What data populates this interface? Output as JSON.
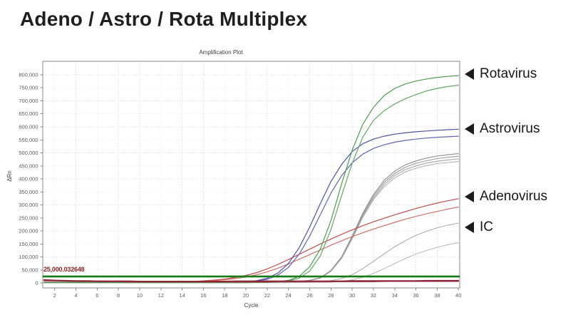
{
  "page": {
    "title": "Adeno / Astro / Rota Multiplex"
  },
  "annotations": [
    {
      "label": "Rotavirus",
      "y_value": 800000
    },
    {
      "label": "Astrovirus",
      "y_value": 590000
    },
    {
      "label": "Adenovirus",
      "y_value": 330000
    },
    {
      "label": "IC",
      "y_value": 210000
    }
  ],
  "style": {
    "grid_color": "#d7d7d7",
    "border_color": "#8a8a8a",
    "tick_color": "#8a8a8a",
    "tick_label_color": "#5a5a5a",
    "annotation_color": "#161616",
    "threshold_label_color": "#8e1f1f",
    "title_color": "#1f1f1f"
  },
  "chart_data": {
    "type": "line",
    "title": "Amplification Plot",
    "xlabel": "Cycle",
    "ylabel": "ΔRn",
    "xlim": [
      0.88,
      40.12
    ],
    "ylim": [
      -19000,
      852000
    ],
    "grid": true,
    "legend": "none",
    "x_ticks": [
      2,
      4,
      6,
      8,
      10,
      12,
      14,
      16,
      18,
      20,
      22,
      24,
      26,
      28,
      30,
      32,
      34,
      36,
      38,
      40
    ],
    "y_ticks": [
      0,
      50000,
      100000,
      150000,
      200000,
      250000,
      300000,
      350000,
      400000,
      450000,
      500000,
      550000,
      600000,
      650000,
      700000,
      750000,
      800000
    ],
    "threshold": {
      "value": 25000,
      "label": "25,000.032648",
      "color": "#157a15",
      "width": 2.6
    },
    "x": [
      1,
      2,
      3,
      4,
      5,
      6,
      7,
      8,
      9,
      10,
      11,
      12,
      13,
      14,
      15,
      16,
      17,
      18,
      19,
      20,
      21,
      22,
      23,
      24,
      25,
      26,
      27,
      28,
      29,
      30,
      31,
      32,
      33,
      34,
      35,
      36,
      37,
      38,
      39,
      40
    ],
    "series": [
      {
        "name": "ic-4",
        "group": "IC",
        "color": "#b1b1b1",
        "width": 1.1,
        "values": [
          1000,
          1000,
          1000,
          1000,
          1000,
          1000,
          1000,
          1000,
          1000,
          1000,
          1000,
          1000,
          1000,
          1000,
          1000,
          1000,
          1000,
          1000,
          1000,
          1000,
          2000,
          2000,
          3000,
          4000,
          6000,
          9000,
          19000,
          45000,
          94000,
          169000,
          252000,
          320000,
          370000,
          404000,
          427000,
          441000,
          451000,
          459000,
          463000,
          467000
        ]
      },
      {
        "name": "ic-3",
        "group": "IC",
        "color": "#a5a5a5",
        "width": 1.1,
        "values": [
          1000,
          1000,
          1000,
          1000,
          1000,
          1000,
          1000,
          1000,
          1000,
          1000,
          1000,
          1000,
          1000,
          1000,
          1000,
          1000,
          1000,
          1000,
          1000,
          1000,
          2000,
          2000,
          3000,
          4000,
          6000,
          10000,
          19000,
          46000,
          96000,
          173000,
          257000,
          326000,
          378000,
          413000,
          436000,
          450000,
          461000,
          468000,
          473000,
          477000
        ]
      },
      {
        "name": "ic-2",
        "group": "IC",
        "color": "#9a9a9a",
        "width": 1.1,
        "values": [
          1000,
          1000,
          1000,
          1000,
          1000,
          1000,
          1000,
          1000,
          1000,
          1000,
          1000,
          1000,
          1000,
          1000,
          1000,
          1000,
          1000,
          1000,
          1000,
          1000,
          2000,
          2000,
          3000,
          4000,
          6000,
          10000,
          20000,
          47000,
          98000,
          176000,
          263000,
          333000,
          386000,
          421000,
          445000,
          460000,
          470000,
          478000,
          483000,
          487000
        ]
      },
      {
        "name": "ic-1",
        "group": "IC",
        "color": "#8f8f8f",
        "width": 1.1,
        "values": [
          1000,
          1000,
          1000,
          1000,
          1000,
          1000,
          1000,
          1000,
          1000,
          1000,
          1000,
          1000,
          1000,
          1000,
          1000,
          1000,
          1000,
          1000,
          1000,
          1000,
          2000,
          2000,
          3000,
          4000,
          6000,
          10000,
          20000,
          48000,
          100000,
          180000,
          268000,
          340000,
          394000,
          430000,
          454000,
          469000,
          480000,
          488000,
          493000,
          497000
        ]
      },
      {
        "name": "ic-low-1",
        "group": "IC",
        "color": "#9f9f9f",
        "width": 0.9,
        "values": [
          1000,
          1000,
          1000,
          1000,
          1000,
          1000,
          1000,
          1000,
          1000,
          1000,
          1000,
          1000,
          1000,
          1000,
          1000,
          1000,
          1000,
          1000,
          1000,
          1000,
          1000,
          1000,
          1000,
          1000,
          2000,
          3000,
          5000,
          9000,
          17000,
          32000,
          55000,
          83000,
          112000,
          139000,
          163000,
          183000,
          199000,
          212000,
          222000,
          230000
        ]
      },
      {
        "name": "ic-low-2",
        "group": "IC",
        "color": "#b0b0b0",
        "width": 0.9,
        "values": [
          1000,
          1000,
          1000,
          1000,
          1000,
          1000,
          1000,
          1000,
          1000,
          1000,
          1000,
          1000,
          1000,
          1000,
          1000,
          1000,
          1000,
          1000,
          1000,
          1000,
          1000,
          1000,
          1000,
          1000,
          1000,
          2000,
          2000,
          3000,
          6000,
          12000,
          22000,
          37000,
          55000,
          75000,
          94000,
          111000,
          125000,
          137000,
          147000,
          155000
        ]
      },
      {
        "name": "adenovirus-2",
        "group": "Adenovirus",
        "color": "#d0716d",
        "width": 1.2,
        "values": [
          3000,
          3000,
          3000,
          3000,
          3000,
          3000,
          3000,
          3000,
          3000,
          3000,
          3000,
          3000,
          4000,
          4000,
          5000,
          7000,
          9000,
          12000,
          17000,
          23000,
          32000,
          43000,
          57000,
          73000,
          91000,
          109000,
          127000,
          145000,
          162000,
          178000,
          193000,
          207000,
          220000,
          233000,
          245000,
          256000,
          266000,
          275000,
          284000,
          292000
        ]
      },
      {
        "name": "adenovirus-1",
        "group": "Adenovirus",
        "color": "#c0504d",
        "width": 1.2,
        "values": [
          3000,
          3000,
          3000,
          3000,
          3000,
          3000,
          3000,
          3000,
          3000,
          3000,
          3000,
          4000,
          4000,
          5000,
          6000,
          8000,
          11000,
          15000,
          21000,
          29000,
          40000,
          54000,
          71000,
          90000,
          110000,
          130000,
          150000,
          169000,
          187000,
          204000,
          220000,
          235000,
          249000,
          262000,
          274000,
          286000,
          297000,
          307000,
          316000,
          324000
        ]
      },
      {
        "name": "astrovirus-2",
        "group": "Astrovirus",
        "color": "#5f64b4",
        "width": 1.2,
        "values": [
          2000,
          2000,
          2000,
          2000,
          2000,
          2000,
          2000,
          2000,
          2000,
          2000,
          2000,
          2000,
          2000,
          2000,
          2000,
          2000,
          2000,
          2000,
          2000,
          4000,
          7000,
          14000,
          30000,
          60000,
          110000,
          180000,
          262000,
          345000,
          412000,
          462000,
          495000,
          517000,
          531000,
          541000,
          548000,
          553000,
          557000,
          560000,
          562000,
          564000
        ]
      },
      {
        "name": "astrovirus-1",
        "group": "Astrovirus",
        "color": "#4c51a6",
        "width": 1.2,
        "values": [
          2000,
          2000,
          2000,
          2000,
          2000,
          2000,
          2000,
          2000,
          2000,
          2000,
          2000,
          2000,
          2000,
          2000,
          2000,
          2000,
          2000,
          2000,
          3000,
          5000,
          9000,
          18000,
          38000,
          75000,
          135000,
          215000,
          305000,
          390000,
          455000,
          505000,
          535000,
          553000,
          564000,
          572000,
          577000,
          581000,
          584000,
          587000,
          589000,
          591000
        ]
      },
      {
        "name": "rotavirus-2",
        "group": "Rotavirus",
        "color": "#61a963",
        "width": 1.2,
        "values": [
          2000,
          2000,
          2000,
          2000,
          2000,
          2000,
          2000,
          2000,
          2000,
          2000,
          2000,
          2000,
          2000,
          2000,
          2000,
          2000,
          2000,
          2000,
          2000,
          2000,
          2000,
          2000,
          4000,
          8000,
          18000,
          46000,
          104000,
          205000,
          335000,
          460000,
          560000,
          625000,
          662000,
          688000,
          708000,
          724000,
          738000,
          748000,
          755000,
          760000
        ]
      },
      {
        "name": "rotavirus-1",
        "group": "Rotavirus",
        "color": "#4e9b50",
        "width": 1.2,
        "values": [
          2000,
          2000,
          2000,
          2000,
          2000,
          2000,
          2000,
          2000,
          2000,
          2000,
          2000,
          2000,
          2000,
          2000,
          2000,
          2000,
          2000,
          2000,
          2000,
          2000,
          2000,
          3000,
          5000,
          10000,
          25000,
          62000,
          130000,
          240000,
          380000,
          510000,
          610000,
          675000,
          720000,
          748000,
          765000,
          776000,
          784000,
          790000,
          794000,
          797000
        ]
      },
      {
        "name": "baseline-negative-2",
        "group": "No amplification",
        "color": "#ab3330",
        "width": 1.3,
        "values": [
          9000,
          8000,
          7000,
          6000,
          6000,
          5000,
          5000,
          5000,
          4000,
          4000,
          4000,
          4000,
          4000,
          4000,
          4000,
          4000,
          4000,
          4000,
          4000,
          4000,
          4000,
          4000,
          5000,
          5000,
          5000,
          5000,
          5000,
          5000,
          5000,
          5000,
          5000,
          5000,
          6000,
          6000,
          6000,
          6000,
          6000,
          6000,
          6000,
          6000
        ]
      },
      {
        "name": "baseline-negative-3",
        "group": "No amplification",
        "color": "#7c2d88",
        "width": 1.3,
        "values": [
          11000,
          9000,
          8000,
          8000,
          7000,
          7000,
          7000,
          6000,
          6000,
          6000,
          6000,
          6000,
          6000,
          6000,
          6000,
          6000,
          6000,
          6000,
          6000,
          6000,
          6000,
          6000,
          6000,
          6000,
          6000,
          6000,
          6000,
          6000,
          7000,
          7000,
          7000,
          7000,
          7000,
          7000,
          7000,
          7000,
          7000,
          7000,
          8000,
          8000
        ]
      },
      {
        "name": "baseline-negative-1",
        "group": "No amplification",
        "color": "#8b2032",
        "width": 1.8,
        "values": [
          12000,
          10000,
          9000,
          8000,
          8000,
          7000,
          7000,
          7000,
          7000,
          6000,
          6000,
          6000,
          6000,
          6000,
          6000,
          6000,
          6000,
          6000,
          7000,
          7000,
          7000,
          7000,
          7000,
          7000,
          7000,
          7000,
          7000,
          7000,
          7000,
          8000,
          8000,
          8000,
          8000,
          8000,
          8000,
          8000,
          9000,
          9000,
          9000,
          9000
        ]
      }
    ]
  }
}
